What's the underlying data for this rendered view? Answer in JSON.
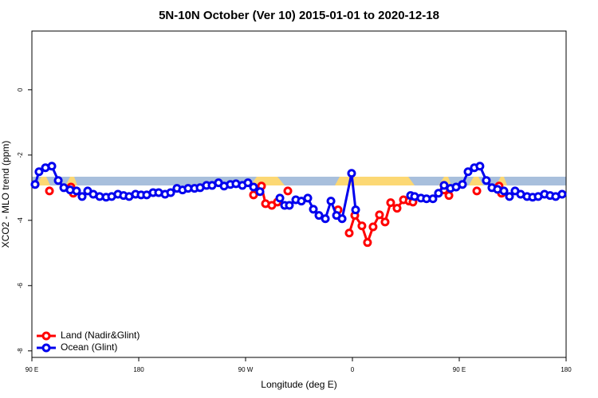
{
  "chart_data": {
    "type": "line",
    "title": "5N-10N October (Ver 10)   2015-01-01 to 2020-12-18",
    "x_label": "Longitude (deg E)",
    "y_label": "XCO2 - MLO trend (ppm)",
    "xlim": [
      90,
      540
    ],
    "xticks": [
      {
        "value": 90,
        "label": "90 E"
      },
      180,
      {
        "value": 270,
        "label": "90 W"
      },
      {
        "value": 360,
        "label": "0"
      },
      {
        "value": 450,
        "label": "90 E"
      },
      {
        "value": 540,
        "label": "180"
      }
    ],
    "ylim": [
      -8.2,
      1.8
    ],
    "yticks": [
      0,
      -2,
      -4,
      -6,
      -8
    ],
    "legend": "bottom-left",
    "series": [
      {
        "name": "Land (Nadir&Glint)",
        "color": "#ff0000",
        "x": [
          104.8,
          null,
          122.9,
          124.9,
          null,
          276.7,
          283.4,
          286.8,
          292.1,
          296.8,
          null,
          305.6,
          null,
          347.9,
          null,
          357.3,
          362,
          368,
          372.7,
          377.4,
          382.8,
          387.5,
          392.2,
          397.6,
          403,
          407.7,
          411,
          null,
          437.2,
          441.3,
          null,
          464.8,
          null,
          483.5,
          485.6
        ],
        "values": [
          -3.1,
          null,
          -2.98,
          -3.17,
          null,
          -3.22,
          -2.95,
          -3.49,
          -3.54,
          -3.44,
          null,
          -3.1,
          null,
          -3.68,
          null,
          -4.39,
          -3.85,
          -4.17,
          -4.68,
          -4.2,
          -3.83,
          -4.05,
          -3.46,
          -3.63,
          -3.37,
          -3.41,
          -3.44,
          null,
          -3.07,
          -3.24,
          null,
          -3.1,
          null,
          -2.95,
          -3.17
        ]
      },
      {
        "name": "Ocean (Glint)",
        "color": "#0000ee",
        "x": [
          92.7,
          96,
          101.4,
          106.8,
          112.2,
          116.9,
          122.2,
          127.6,
          132.3,
          137,
          141.7,
          147.1,
          152.5,
          157.2,
          162.5,
          167.2,
          171.9,
          177.3,
          182,
          186.7,
          192.1,
          196.8,
          202.2,
          206.9,
          212.2,
          216.9,
          221.6,
          227,
          231.7,
          237.1,
          241.8,
          247.2,
          251.9,
          257.2,
          261.9,
          267.3,
          272,
          276.7,
          282.1,
          null,
          298.9,
          302.9,
          306.9,
          312.3,
          317,
          322.4,
          327.1,
          331.8,
          337.2,
          341.9,
          346.6,
          351.3,
          359.3,
          362.7,
          null,
          409,
          412.4,
          417.7,
          422.4,
          427.8,
          432.5,
          437.2,
          442.6,
          447.3,
          452.7,
          457.4,
          462.7,
          467.4,
          472.8,
          477.5,
          482.2,
          487.6,
          492.3,
          497,
          501.7,
          507.1,
          511.8,
          516.5,
          521.8,
          526.5,
          531.2,
          536.6
        ],
        "values": [
          -2.9,
          -2.51,
          -2.39,
          -2.34,
          -2.78,
          -3.0,
          -3.07,
          -3.1,
          -3.27,
          -3.1,
          -3.2,
          -3.27,
          -3.29,
          -3.27,
          -3.2,
          -3.24,
          -3.27,
          -3.2,
          -3.22,
          -3.22,
          -3.15,
          -3.15,
          -3.2,
          -3.15,
          -3.02,
          -3.07,
          -3.02,
          -3.02,
          -3.0,
          -2.93,
          -2.93,
          -2.85,
          -2.95,
          -2.9,
          -2.88,
          -2.93,
          -2.85,
          -2.98,
          -3.12,
          null,
          -3.32,
          -3.54,
          -3.54,
          -3.37,
          -3.41,
          -3.32,
          -3.66,
          -3.85,
          -3.95,
          -3.41,
          -3.85,
          -3.95,
          -2.56,
          -3.68,
          null,
          -3.24,
          -3.27,
          -3.32,
          -3.34,
          -3.34,
          -3.17,
          -2.93,
          -3.02,
          -2.98,
          -2.9,
          -2.51,
          -2.39,
          -2.34,
          -2.78,
          -3.0,
          -3.05,
          -3.1,
          -3.27,
          -3.1,
          -3.2,
          -3.27,
          -3.29,
          -3.27,
          -3.2,
          -3.24,
          -3.27,
          -3.2
        ]
      }
    ]
  }
}
